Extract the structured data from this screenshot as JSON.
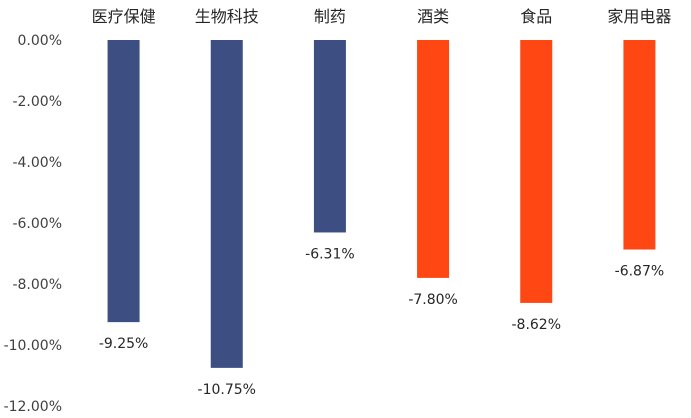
{
  "chart_data": {
    "type": "bar",
    "categories": [
      "医疗保健",
      "生物科技",
      "制药",
      "酒类",
      "食品",
      "家用电器"
    ],
    "values": [
      -9.25,
      -10.75,
      -6.31,
      -7.8,
      -8.62,
      -6.87
    ],
    "data_labels": [
      "-9.25%",
      "-10.75%",
      "-6.31%",
      "-7.80%",
      "-8.62%",
      "-6.87%"
    ],
    "bar_colors": [
      "#3c4e82",
      "#3c4e82",
      "#3c4e82",
      "#ff4714",
      "#ff4714",
      "#ff4714"
    ],
    "ylim": [
      -12,
      0
    ],
    "yticks": [
      0,
      -2,
      -4,
      -6,
      -8,
      -10,
      -12
    ],
    "ytick_labels": [
      "0.00%",
      "-2.00%",
      "-4.00%",
      "-6.00%",
      "-8.00%",
      "-10.00%",
      "-12.00%"
    ],
    "x_axis_position": "top",
    "grid": false,
    "legend": "none",
    "title": "",
    "xlabel": "",
    "ylabel": ""
  }
}
